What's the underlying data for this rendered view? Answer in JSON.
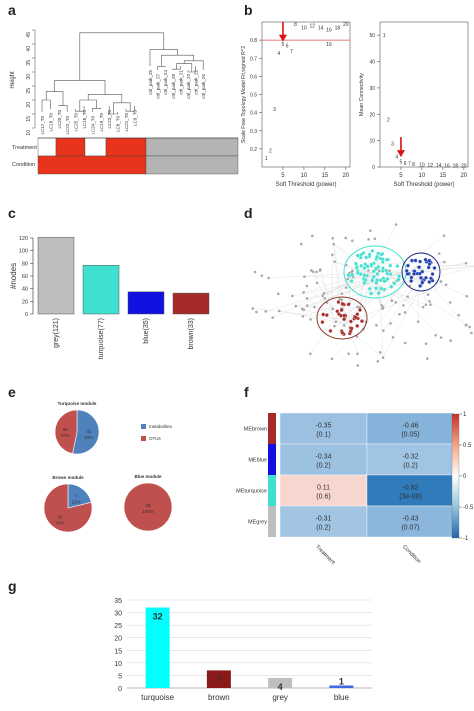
{
  "panels": {
    "a": "a",
    "b": "b",
    "c": "c",
    "d": "d",
    "e": "e",
    "f": "f",
    "g": "g"
  },
  "colors": {
    "red": "#e8341c",
    "grey": "#b4b4b4",
    "turquoise": "#40e0d0",
    "blue": "#1010e0",
    "brown": "#a52a2a",
    "arrow": "#dd1111"
  },
  "dendrogram": {
    "ylabel": "Height",
    "yticks": [
      10,
      15,
      20,
      25,
      30,
      35,
      40,
      45
    ],
    "left_leaves": [
      "LC17_T0",
      "LC18_T0",
      "LC20_T0",
      "LC22_T0",
      "LC25_T0",
      "LC16_T0",
      "LC24_T0",
      "LC19_T0",
      "LC23_T0",
      "LC8_T0",
      "LC21_T0",
      "LC9_T0"
    ],
    "right_leaves": [
      "ctrl_park_25",
      "ctrl_park_27",
      "ctrl_park_24",
      "ctrl_park_28",
      "ctrl_park_21",
      "ctrl_park_23",
      "ctrl_park_22",
      "ctrl_park_26"
    ],
    "tracks": [
      "Treatment",
      "Condition"
    ],
    "treatment_pattern": [
      "white",
      "red",
      "white",
      "red",
      "grey"
    ],
    "condition_pattern": [
      "red",
      "grey"
    ]
  },
  "chart_data": [
    {
      "type": "scatter",
      "title": "",
      "xlabel": "Soft Threshold (power)",
      "ylabel": "Scale Free Topology Model Fit,signed R^2",
      "xlim": [
        0,
        21
      ],
      "ylim": [
        0.1,
        0.9
      ],
      "xticks": [
        5,
        10,
        15,
        20
      ],
      "yticks": [
        0.2,
        0.3,
        0.4,
        0.5,
        0.6,
        0.7,
        0.8
      ],
      "cutoff": 0.8,
      "points": [
        {
          "x": 1,
          "y": 0.15,
          "label": "1"
        },
        {
          "x": 2,
          "y": 0.19,
          "label": "2"
        },
        {
          "x": 3,
          "y": 0.42,
          "label": "3"
        },
        {
          "x": 4,
          "y": 0.73,
          "label": "4"
        },
        {
          "x": 5,
          "y": 0.78,
          "label": "5"
        },
        {
          "x": 6,
          "y": 0.77,
          "label": "6"
        },
        {
          "x": 7,
          "y": 0.74,
          "label": "7"
        },
        {
          "x": 8,
          "y": 0.89,
          "label": "8"
        },
        {
          "x": 10,
          "y": 0.87,
          "label": "10"
        },
        {
          "x": 12,
          "y": 0.88,
          "label": "12"
        },
        {
          "x": 14,
          "y": 0.87,
          "label": "14"
        },
        {
          "x": 16,
          "y": 0.86,
          "label": "16"
        },
        {
          "x": 16,
          "y": 0.78,
          "label": "16"
        },
        {
          "x": 18,
          "y": 0.87,
          "label": "18"
        },
        {
          "x": 20,
          "y": 0.89,
          "label": "20"
        }
      ]
    },
    {
      "type": "scatter",
      "title": "",
      "xlabel": "Soft Threshold (power)",
      "ylabel": "Mean Connectivity",
      "xlim": [
        0,
        21
      ],
      "ylim": [
        0,
        55
      ],
      "xticks": [
        5,
        10,
        15,
        20
      ],
      "yticks": [
        0,
        10,
        20,
        30,
        40,
        50
      ],
      "points": [
        {
          "x": 1,
          "y": 50,
          "label": "1"
        },
        {
          "x": 2,
          "y": 18,
          "label": "2"
        },
        {
          "x": 3,
          "y": 9,
          "label": "3"
        },
        {
          "x": 4,
          "y": 4,
          "label": "4"
        },
        {
          "x": 5,
          "y": 2,
          "label": "5"
        },
        {
          "x": 6,
          "y": 1.6,
          "label": "6"
        },
        {
          "x": 7,
          "y": 1.3,
          "label": "7"
        },
        {
          "x": 8,
          "y": 1.1,
          "label": "8"
        },
        {
          "x": 10,
          "y": 0.9,
          "label": "10"
        },
        {
          "x": 12,
          "y": 0.8,
          "label": "12"
        },
        {
          "x": 14,
          "y": 0.7,
          "label": "14"
        },
        {
          "x": 16,
          "y": 0.6,
          "label": "16"
        },
        {
          "x": 18,
          "y": 0.5,
          "label": "18"
        },
        {
          "x": 20,
          "y": 0.5,
          "label": "20"
        }
      ]
    },
    {
      "type": "bar",
      "title": "",
      "xlabel": "",
      "ylabel": "#nodes",
      "ylim": [
        0,
        120
      ],
      "yticks": [
        0,
        20,
        40,
        60,
        80,
        100,
        120
      ],
      "categories": [
        "grey(121)",
        "turquoise(77)",
        "blue(35)",
        "brown(33)"
      ],
      "values": [
        121,
        77,
        35,
        33
      ],
      "colors": [
        "#bdbdbd",
        "#40e0d0",
        "#1010e0",
        "#a52a2a"
      ]
    },
    {
      "type": "pie",
      "title": "Turquoise module",
      "slices": [
        {
          "name": "metabolites",
          "value": 41,
          "percent": "53%",
          "color": "#4f81bd"
        },
        {
          "name": "OTUs",
          "value": 36,
          "percent": "47%",
          "color": "#c0504d"
        }
      ]
    },
    {
      "type": "pie",
      "title": "Brown module",
      "slices": [
        {
          "name": "metabolites",
          "value": 7,
          "percent": "21%",
          "color": "#4f81bd"
        },
        {
          "name": "OTUs",
          "value": 26,
          "percent": "79%",
          "color": "#c0504d"
        }
      ]
    },
    {
      "type": "pie",
      "title": "Blue module",
      "slices": [
        {
          "name": "OTUs",
          "value": 35,
          "percent": "100%",
          "color": "#c0504d"
        }
      ]
    },
    {
      "type": "heatmap",
      "title": "",
      "rows": [
        "MEbrown",
        "MEblue",
        "MEturquoise",
        "MEgrey"
      ],
      "row_colors": [
        "#a52a2a",
        "#1010e0",
        "#40e0d0",
        "#bebebe"
      ],
      "columns": [
        "Treatment",
        "Condition"
      ],
      "values": [
        [
          -0.35,
          -0.46
        ],
        [
          -0.34,
          -0.32
        ],
        [
          0.11,
          -0.92
        ],
        [
          -0.31,
          -0.43
        ]
      ],
      "pvalues": [
        [
          "(0.1)",
          "(0.05)"
        ],
        [
          "(0.2)",
          "(0.2)"
        ],
        [
          "(0.6)",
          "(3e-08)"
        ],
        [
          "(0.2)",
          "(0.07)"
        ]
      ],
      "colorbar_ticks": [
        1,
        0.5,
        0,
        -0.5,
        -1
      ],
      "colorbar_labels": [
        "1",
        "0.5",
        "0",
        "-0.5",
        "-1"
      ]
    },
    {
      "type": "bar",
      "title": "",
      "xlabel": "",
      "ylabel": "",
      "ylim": [
        0,
        35
      ],
      "yticks": [
        0,
        5,
        10,
        15,
        20,
        25,
        30,
        35
      ],
      "categories": [
        "turquoise",
        "brown",
        "grey",
        "blue"
      ],
      "values": [
        32,
        7,
        4,
        1
      ],
      "colors": [
        "#00ffff",
        "#8b1a1a",
        "#bebebe",
        "#4169e1"
      ]
    }
  ],
  "legend_e": {
    "items": [
      {
        "name": "metabolites",
        "color": "#4f81bd"
      },
      {
        "name": "OTUs",
        "color": "#c0504d"
      }
    ]
  },
  "network": {
    "clusters": [
      {
        "name": "turquoise",
        "fill": "#40e0d0",
        "ring": "#40e0d0",
        "count": 77
      },
      {
        "name": "blue",
        "fill": "#1f3fb0",
        "ring": "#1a237e",
        "count": 35
      },
      {
        "name": "brown",
        "fill": "#a52a2a",
        "ring": "#8b3a2a",
        "count": 33
      }
    ],
    "grey_count": 121
  }
}
